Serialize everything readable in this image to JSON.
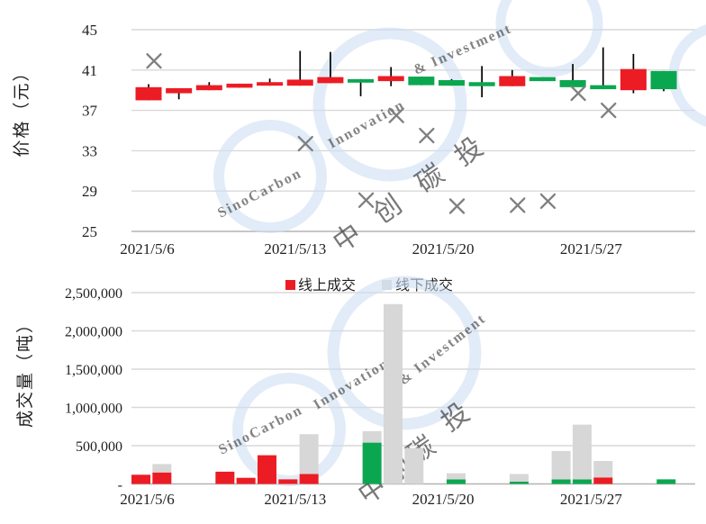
{
  "ui": {
    "price_y_axis_title": "价格（元）",
    "volume_y_axis_title": "成交量（吨）",
    "legend": {
      "online_label": "线上成交",
      "offline_label": "线下成交"
    },
    "watermark": {
      "latin_1": "SinoCarbon",
      "latin_2": "Innovation",
      "latin_3": "& Investment",
      "cn_chars": [
        "中",
        "创",
        "碳",
        "投"
      ]
    }
  },
  "colors": {
    "up_red": "#ec1c24",
    "down_green": "#0ba750",
    "offline_gray": "#d7d7d7",
    "marker_gray": "#7f7f7f",
    "gridline": "#d9d9d9",
    "axis_line": "#b3b3b3",
    "text": "#1f1f1f",
    "watermark_ring": "#cfe0f4",
    "watermark_pink": "#eaa6ad",
    "watermark_blue": "#a8bfdc",
    "watermark_gray": "#b3b3b3"
  },
  "chart_data": [
    {
      "type": "candlestick",
      "ylabel": "价格（元）",
      "ylim": [
        25,
        45
      ],
      "yticks": [
        "45",
        "41",
        "37",
        "33",
        "29",
        "25"
      ],
      "x_labels_shown": [
        "2021/5/6",
        "2021/5/13",
        "2021/5/20",
        "2021/5/27"
      ],
      "grid": true,
      "up_color": "#ec1c24",
      "down_color": "#0ba750",
      "candles": [
        {
          "date": "2021/5/6",
          "open": 38.0,
          "close": 39.3,
          "high": 39.6,
          "low": 38.0,
          "dir": "up"
        },
        {
          "date": "2021/5/7",
          "open": 38.7,
          "close": 39.2,
          "high": 39.2,
          "low": 38.1,
          "dir": "up"
        },
        {
          "date": "2021/5/10",
          "open": 39.0,
          "close": 39.5,
          "high": 39.8,
          "low": 39.0,
          "dir": "up"
        },
        {
          "date": "2021/5/11",
          "open": 39.25,
          "close": 39.65,
          "high": 39.65,
          "low": 39.25,
          "dir": "up"
        },
        {
          "date": "2021/5/12",
          "open": 39.45,
          "close": 39.8,
          "high": 40.15,
          "low": 39.45,
          "dir": "up"
        },
        {
          "date": "2021/5/13",
          "open": 39.45,
          "close": 40.05,
          "high": 42.9,
          "low": 39.45,
          "dir": "up"
        },
        {
          "date": "2021/5/14",
          "open": 39.7,
          "close": 40.3,
          "high": 42.8,
          "low": 39.7,
          "dir": "up"
        },
        {
          "date": "2021/5/17",
          "open": 40.1,
          "close": 39.75,
          "high": 40.1,
          "low": 38.4,
          "dir": "down"
        },
        {
          "date": "2021/5/18",
          "open": 39.9,
          "close": 40.4,
          "high": 41.3,
          "low": 39.4,
          "dir": "up"
        },
        {
          "date": "2021/5/19",
          "open": 40.35,
          "close": 39.5,
          "high": 40.35,
          "low": 39.5,
          "dir": "down"
        },
        {
          "date": "2021/5/20",
          "open": 40.0,
          "close": 39.45,
          "high": 40.1,
          "low": 39.45,
          "dir": "down"
        },
        {
          "date": "2021/5/21",
          "open": 39.8,
          "close": 39.4,
          "high": 41.4,
          "low": 38.3,
          "dir": "down"
        },
        {
          "date": "2021/5/24",
          "open": 39.4,
          "close": 40.4,
          "high": 41.0,
          "low": 39.4,
          "dir": "up"
        },
        {
          "date": "2021/5/25",
          "open": 40.3,
          "close": 39.9,
          "high": 40.3,
          "low": 39.9,
          "dir": "down"
        },
        {
          "date": "2021/5/26",
          "open": 40.0,
          "close": 39.3,
          "high": 41.6,
          "low": 39.3,
          "dir": "down"
        },
        {
          "date": "2021/5/27",
          "open": 39.5,
          "close": 39.1,
          "high": 43.25,
          "low": 39.1,
          "dir": "down"
        },
        {
          "date": "2021/5/28",
          "open": 39.0,
          "close": 41.1,
          "high": 42.6,
          "low": 38.7,
          "dir": "up"
        },
        {
          "date": "2021/5/31",
          "open": 40.9,
          "close": 39.1,
          "high": 40.9,
          "low": 38.9,
          "dir": "down"
        }
      ],
      "scatter_markers": {
        "marker": "x",
        "color": "#7f7f7f",
        "points": [
          {
            "date": "2021/5/6",
            "price": 41.9
          },
          {
            "date": "2021/5/13",
            "price": 33.7
          },
          {
            "date": "2021/5/17",
            "price": 28.1
          },
          {
            "date": "2021/5/18",
            "price": 36.5
          },
          {
            "date": "2021/5/19",
            "price": 34.5
          },
          {
            "date": "2021/5/20",
            "price": 27.5
          },
          {
            "date": "2021/5/24",
            "price": 27.6
          },
          {
            "date": "2021/5/25",
            "price": 28.0
          },
          {
            "date": "2021/5/26",
            "price": 38.7
          },
          {
            "date": "2021/5/27",
            "price": 37.0
          }
        ]
      }
    },
    {
      "type": "stacked_bar",
      "ylabel": "成交量（吨）",
      "ylim": [
        0,
        2500000
      ],
      "ytick_labels": [
        "2,500,000",
        "2,000,000",
        "1,500,000",
        "1,000,000",
        "500,000",
        "-"
      ],
      "ytick_values": [
        2500000,
        2000000,
        1500000,
        1000000,
        500000,
        0
      ],
      "x_labels_shown": [
        "2021/5/6",
        "2021/5/13",
        "2021/5/20",
        "2021/5/27"
      ],
      "grid": true,
      "legend_position": "top-center",
      "series": [
        {
          "name": "线上成交",
          "color": "#ec1c24"
        },
        {
          "name": "线下成交",
          "color": "#d7d7d7"
        }
      ],
      "online_alt_color": "#0ba750",
      "bars": [
        {
          "date": "2021/5/6",
          "online": 120000,
          "offline": 0,
          "online_color": "red"
        },
        {
          "date": "2021/5/7",
          "online": 150000,
          "offline": 110000,
          "online_color": "red"
        },
        {
          "date": "2021/5/10",
          "online": 160000,
          "offline": 0,
          "online_color": "red"
        },
        {
          "date": "2021/5/11",
          "online": 80000,
          "offline": 0,
          "online_color": "red"
        },
        {
          "date": "2021/5/12",
          "online": 375000,
          "offline": 0,
          "online_color": "red"
        },
        {
          "date": "2021/5/13",
          "online": 60000,
          "offline": 0,
          "online_color": "red"
        },
        {
          "date": "2021/5/14",
          "online": 130000,
          "offline": 520000,
          "online_color": "red"
        },
        {
          "date": "2021/5/17",
          "online": 540000,
          "offline": 150000,
          "online_color": "green"
        },
        {
          "date": "2021/5/18",
          "online": 0,
          "offline": 2350000,
          "online_color": "red"
        },
        {
          "date": "2021/5/19",
          "online": 0,
          "offline": 470000,
          "online_color": "red"
        },
        {
          "date": "2021/5/21",
          "online": 60000,
          "offline": 80000,
          "online_color": "green"
        },
        {
          "date": "2021/5/24",
          "online": 30000,
          "offline": 100000,
          "online_color": "green"
        },
        {
          "date": "2021/5/26",
          "online": 60000,
          "offline": 370000,
          "online_color": "green"
        },
        {
          "date": "2021/5/27",
          "online": 60000,
          "offline": 715000,
          "online_color": "green"
        },
        {
          "date": "2021/5/28",
          "online": 85000,
          "offline": 215000,
          "online_color": "red"
        },
        {
          "date": "2021/5/31",
          "online": 60000,
          "offline": 0,
          "online_color": "green"
        }
      ]
    }
  ]
}
